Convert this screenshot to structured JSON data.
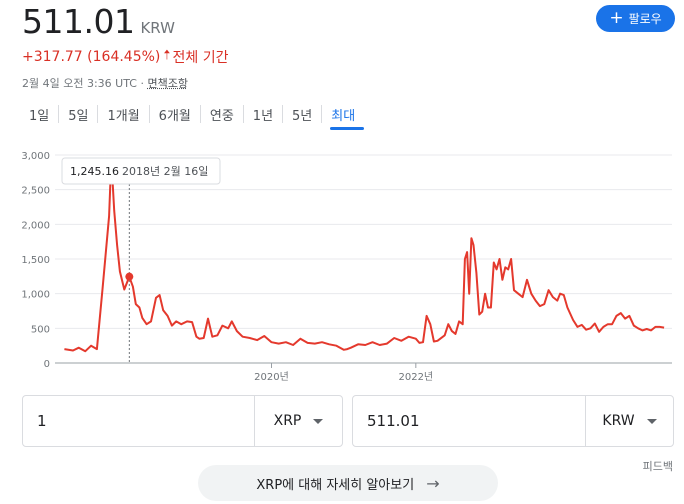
{
  "quote": {
    "price": "511.01",
    "currency": "KRW",
    "change": "+317.77 (164.45%)",
    "period": "전체 기간",
    "timestamp": "2월 4일 오전 3:36 UTC · ",
    "disclaimer": "면책조항"
  },
  "follow_button": {
    "label": "팔로우"
  },
  "tabs": [
    {
      "label": "1일"
    },
    {
      "label": "5일"
    },
    {
      "label": "1개월"
    },
    {
      "label": "6개월"
    },
    {
      "label": "연중"
    },
    {
      "label": "1년"
    },
    {
      "label": "5년"
    },
    {
      "label": "최대",
      "active": true
    }
  ],
  "converter": {
    "from_amount": "1",
    "from_currency": "XRP",
    "to_amount": "511.01",
    "to_currency": "KRW"
  },
  "feedback": "피드백",
  "learn_more": "XRP에 대해 자세히 알아보기",
  "colors": {
    "line": "#e4392d",
    "accent": "#1a73e8",
    "change": "#d93025"
  },
  "chart_data": {
    "type": "line",
    "y_ticks": [
      "3,000",
      "2,500",
      "2,000",
      "1,500",
      "1,000",
      "500",
      "0"
    ],
    "ylim": [
      0,
      3000
    ],
    "x_ticks": [
      "2020년",
      "2022년"
    ],
    "grid": true,
    "tooltip": {
      "value": "1,245.16",
      "date": "2018년 2월 16일"
    },
    "series": [
      {
        "values": [
          [
            2017.13,
            200
          ],
          [
            2017.25,
            180
          ],
          [
            2017.33,
            220
          ],
          [
            2017.42,
            170
          ],
          [
            2017.5,
            250
          ],
          [
            2017.58,
            200
          ],
          [
            2017.66,
            1080
          ],
          [
            2017.75,
            2120
          ],
          [
            2017.78,
            2950
          ],
          [
            2017.82,
            2200
          ],
          [
            2017.86,
            1700
          ],
          [
            2017.9,
            1320
          ],
          [
            2017.96,
            1060
          ],
          [
            2018.03,
            1245
          ],
          [
            2018.08,
            1100
          ],
          [
            2018.12,
            850
          ],
          [
            2018.17,
            800
          ],
          [
            2018.21,
            650
          ],
          [
            2018.27,
            560
          ],
          [
            2018.33,
            600
          ],
          [
            2018.4,
            940
          ],
          [
            2018.45,
            980
          ],
          [
            2018.5,
            760
          ],
          [
            2018.56,
            680
          ],
          [
            2018.62,
            540
          ],
          [
            2018.68,
            600
          ],
          [
            2018.75,
            560
          ],
          [
            2018.83,
            600
          ],
          [
            2018.9,
            590
          ],
          [
            2018.96,
            380
          ],
          [
            2019.0,
            350
          ],
          [
            2019.06,
            360
          ],
          [
            2019.12,
            640
          ],
          [
            2019.18,
            380
          ],
          [
            2019.25,
            400
          ],
          [
            2019.32,
            540
          ],
          [
            2019.4,
            500
          ],
          [
            2019.45,
            600
          ],
          [
            2019.52,
            460
          ],
          [
            2019.6,
            380
          ],
          [
            2019.7,
            360
          ],
          [
            2019.8,
            330
          ],
          [
            2019.9,
            390
          ],
          [
            2020.0,
            300
          ],
          [
            2020.1,
            280
          ],
          [
            2020.2,
            300
          ],
          [
            2020.3,
            260
          ],
          [
            2020.4,
            350
          ],
          [
            2020.5,
            290
          ],
          [
            2020.6,
            280
          ],
          [
            2020.7,
            300
          ],
          [
            2020.8,
            270
          ],
          [
            2020.9,
            250
          ],
          [
            2021.0,
            190
          ],
          [
            2021.05,
            200
          ],
          [
            2021.1,
            220
          ],
          [
            2021.2,
            270
          ],
          [
            2021.3,
            260
          ],
          [
            2021.4,
            300
          ],
          [
            2021.5,
            260
          ],
          [
            2021.6,
            280
          ],
          [
            2021.7,
            360
          ],
          [
            2021.8,
            320
          ],
          [
            2021.9,
            380
          ],
          [
            2022.0,
            350
          ],
          [
            2022.05,
            290
          ],
          [
            2022.1,
            300
          ],
          [
            2022.15,
            680
          ],
          [
            2022.2,
            560
          ],
          [
            2022.25,
            310
          ],
          [
            2022.3,
            320
          ],
          [
            2022.4,
            400
          ],
          [
            2022.45,
            560
          ],
          [
            2022.5,
            460
          ],
          [
            2022.55,
            420
          ],
          [
            2022.6,
            600
          ],
          [
            2022.65,
            560
          ],
          [
            2022.68,
            1500
          ],
          [
            2022.71,
            1600
          ],
          [
            2022.74,
            1000
          ],
          [
            2022.77,
            1800
          ],
          [
            2022.8,
            1700
          ],
          [
            2022.84,
            1300
          ],
          [
            2022.88,
            700
          ],
          [
            2022.92,
            740
          ],
          [
            2022.96,
            1000
          ],
          [
            2023.0,
            800
          ],
          [
            2023.04,
            800
          ],
          [
            2023.08,
            1450
          ],
          [
            2023.12,
            1350
          ],
          [
            2023.16,
            1500
          ],
          [
            2023.2,
            1200
          ],
          [
            2023.24,
            1380
          ],
          [
            2023.28,
            1350
          ],
          [
            2023.32,
            1500
          ],
          [
            2023.36,
            1050
          ],
          [
            2023.42,
            1000
          ],
          [
            2023.48,
            950
          ],
          [
            2023.54,
            1200
          ],
          [
            2023.6,
            1000
          ],
          [
            2023.66,
            900
          ],
          [
            2023.72,
            820
          ],
          [
            2023.78,
            850
          ],
          [
            2023.84,
            1050
          ],
          [
            2023.9,
            950
          ],
          [
            2023.96,
            900
          ],
          [
            2024.0,
            1000
          ],
          [
            2024.05,
            980
          ],
          [
            2024.1,
            800
          ],
          [
            2024.18,
            620
          ],
          [
            2024.24,
            520
          ],
          [
            2024.3,
            550
          ],
          [
            2024.36,
            480
          ],
          [
            2024.42,
            500
          ],
          [
            2024.48,
            570
          ],
          [
            2024.54,
            450
          ],
          [
            2024.6,
            520
          ],
          [
            2024.66,
            560
          ],
          [
            2024.72,
            560
          ],
          [
            2024.78,
            680
          ],
          [
            2024.84,
            720
          ],
          [
            2024.9,
            640
          ],
          [
            2024.96,
            680
          ],
          [
            2025.02,
            540
          ],
          [
            2025.08,
            500
          ],
          [
            2025.14,
            470
          ],
          [
            2025.2,
            490
          ],
          [
            2025.26,
            470
          ],
          [
            2025.32,
            520
          ],
          [
            2025.38,
            520
          ],
          [
            2025.44,
            511
          ]
        ]
      }
    ]
  }
}
